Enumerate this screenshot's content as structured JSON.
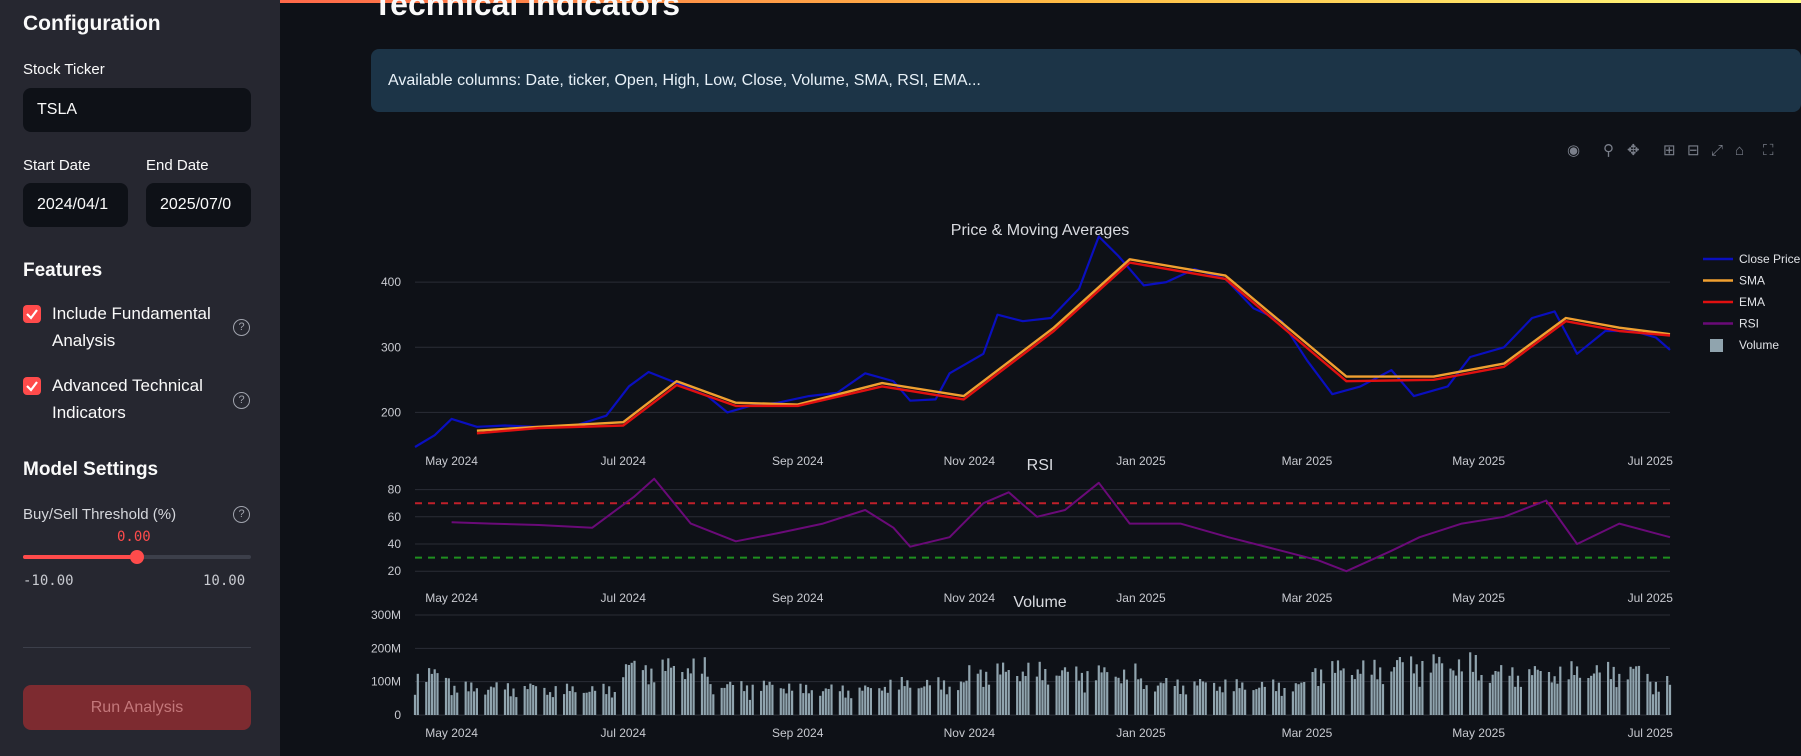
{
  "sidebar": {
    "config_title": "Configuration",
    "ticker_label": "Stock Ticker",
    "ticker_value": "TSLA",
    "start_label": "Start Date",
    "start_value": "2024/04/1",
    "end_label": "End Date",
    "end_value": "2025/07/0",
    "features_title": "Features",
    "feature1": "Include Fundamental Analysis",
    "feature2": "Advanced Technical Indicators",
    "model_title": "Model Settings",
    "threshold_label": "Buy/Sell Threshold (%)",
    "threshold_value": "0.00",
    "threshold_min": "-10.00",
    "threshold_max": "10.00",
    "threshold_fraction": 0.5,
    "run_button": "Run Analysis"
  },
  "main": {
    "page_title": "Technical Indicators",
    "info_text": "Available columns: Date, ticker, Open, High, Low, Close, Volume, SMA, RSI, EMA..."
  },
  "modebar_icons": [
    "camera-icon",
    "zoom-icon",
    "pan-icon",
    "zoom-in-icon",
    "zoom-out-icon",
    "autoscale-icon",
    "home-icon",
    "fullscreen-icon"
  ],
  "colors": {
    "close": "#0a0fbf",
    "sma": "#f0a030",
    "ema": "#e01010",
    "rsi": "#6a0a78",
    "volume": "#90a4ae",
    "overbought": "#c0202a",
    "oversold": "#1f8f1f"
  },
  "chart_data": [
    {
      "type": "line",
      "title": "Price & Moving Averages",
      "x_ticks": [
        "May 2024",
        "Jul 2024",
        "Sep 2024",
        "Nov 2024",
        "Jan 2025",
        "Mar 2025",
        "May 2025",
        "Jul 2025"
      ],
      "y_ticks": [
        200,
        300,
        400
      ],
      "ylim": [
        150,
        480
      ],
      "x_range": [
        "2024-04-18",
        "2025-07-08"
      ],
      "legend": [
        "Close Price",
        "SMA",
        "EMA",
        "RSI",
        "Volume"
      ],
      "legend_position": "right",
      "series": [
        {
          "name": "Close Price",
          "points": [
            [
              "2024-04-18",
              147
            ],
            [
              "2024-04-25",
              165
            ],
            [
              "2024-05-01",
              190
            ],
            [
              "2024-05-10",
              178
            ],
            [
              "2024-05-20",
              180
            ],
            [
              "2024-05-31",
              178
            ],
            [
              "2024-06-14",
              180
            ],
            [
              "2024-06-25",
              195
            ],
            [
              "2024-07-03",
              240
            ],
            [
              "2024-07-10",
              262
            ],
            [
              "2024-07-20",
              245
            ],
            [
              "2024-07-31",
              225
            ],
            [
              "2024-08-07",
              200
            ],
            [
              "2024-08-15",
              210
            ],
            [
              "2024-08-25",
              215
            ],
            [
              "2024-09-05",
              225
            ],
            [
              "2024-09-15",
              230
            ],
            [
              "2024-09-25",
              260
            ],
            [
              "2024-10-05",
              248
            ],
            [
              "2024-10-11",
              218
            ],
            [
              "2024-10-20",
              220
            ],
            [
              "2024-10-25",
              260
            ],
            [
              "2024-11-06",
              290
            ],
            [
              "2024-11-11",
              350
            ],
            [
              "2024-11-20",
              340
            ],
            [
              "2024-11-30",
              345
            ],
            [
              "2024-12-10",
              390
            ],
            [
              "2024-12-17",
              470
            ],
            [
              "2024-12-24",
              440
            ],
            [
              "2025-01-02",
              395
            ],
            [
              "2025-01-10",
              400
            ],
            [
              "2025-01-20",
              420
            ],
            [
              "2025-01-31",
              405
            ],
            [
              "2025-02-10",
              360
            ],
            [
              "2025-02-20",
              340
            ],
            [
              "2025-03-01",
              280
            ],
            [
              "2025-03-10",
              228
            ],
            [
              "2025-03-20",
              240
            ],
            [
              "2025-03-31",
              265
            ],
            [
              "2025-04-08",
              225
            ],
            [
              "2025-04-20",
              240
            ],
            [
              "2025-04-28",
              285
            ],
            [
              "2025-05-10",
              300
            ],
            [
              "2025-05-20",
              345
            ],
            [
              "2025-05-28",
              355
            ],
            [
              "2025-06-05",
              290
            ],
            [
              "2025-06-15",
              325
            ],
            [
              "2025-06-25",
              325
            ],
            [
              "2025-07-03",
              315
            ],
            [
              "2025-07-08",
              296
            ]
          ]
        },
        {
          "name": "SMA",
          "points": [
            [
              "2024-05-10",
              172
            ],
            [
              "2024-06-01",
              178
            ],
            [
              "2024-07-01",
              185
            ],
            [
              "2024-07-20",
              248
            ],
            [
              "2024-08-10",
              215
            ],
            [
              "2024-09-01",
              212
            ],
            [
              "2024-10-01",
              245
            ],
            [
              "2024-10-30",
              225
            ],
            [
              "2024-12-01",
              330
            ],
            [
              "2024-12-28",
              435
            ],
            [
              "2025-01-31",
              410
            ],
            [
              "2025-03-15",
              255
            ],
            [
              "2025-04-15",
              255
            ],
            [
              "2025-05-10",
              275
            ],
            [
              "2025-06-01",
              345
            ],
            [
              "2025-06-20",
              330
            ],
            [
              "2025-07-08",
              320
            ]
          ]
        },
        {
          "name": "EMA",
          "points": [
            [
              "2024-05-10",
              168
            ],
            [
              "2024-06-01",
              176
            ],
            [
              "2024-07-01",
              180
            ],
            [
              "2024-07-20",
              242
            ],
            [
              "2024-08-10",
              210
            ],
            [
              "2024-09-01",
              210
            ],
            [
              "2024-10-01",
              240
            ],
            [
              "2024-10-30",
              220
            ],
            [
              "2024-12-01",
              325
            ],
            [
              "2024-12-28",
              430
            ],
            [
              "2025-01-31",
              405
            ],
            [
              "2025-03-15",
              248
            ],
            [
              "2025-04-15",
              250
            ],
            [
              "2025-05-10",
              270
            ],
            [
              "2025-06-01",
              340
            ],
            [
              "2025-06-20",
              325
            ],
            [
              "2025-07-08",
              318
            ]
          ]
        }
      ]
    },
    {
      "type": "line",
      "title": "RSI",
      "x_ticks": [
        "May 2024",
        "Jul 2024",
        "Sep 2024",
        "Nov 2024",
        "Jan 2025",
        "Mar 2025",
        "May 2025",
        "Jul 2025"
      ],
      "y_ticks": [
        20,
        40,
        60,
        80
      ],
      "ylim": [
        15,
        90
      ],
      "thresholds": [
        70,
        30
      ],
      "series": [
        {
          "name": "RSI",
          "points": [
            [
              "2024-05-01",
              56
            ],
            [
              "2024-05-15",
              55
            ],
            [
              "2024-06-01",
              54
            ],
            [
              "2024-06-20",
              52
            ],
            [
              "2024-07-05",
              75
            ],
            [
              "2024-07-12",
              88
            ],
            [
              "2024-07-25",
              55
            ],
            [
              "2024-08-10",
              42
            ],
            [
              "2024-08-25",
              48
            ],
            [
              "2024-09-10",
              55
            ],
            [
              "2024-09-25",
              65
            ],
            [
              "2024-10-05",
              52
            ],
            [
              "2024-10-11",
              38
            ],
            [
              "2024-10-25",
              45
            ],
            [
              "2024-11-06",
              70
            ],
            [
              "2024-11-15",
              78
            ],
            [
              "2024-11-25",
              60
            ],
            [
              "2024-12-05",
              65
            ],
            [
              "2024-12-17",
              85
            ],
            [
              "2024-12-28",
              55
            ],
            [
              "2025-01-15",
              55
            ],
            [
              "2025-02-01",
              45
            ],
            [
              "2025-02-20",
              35
            ],
            [
              "2025-03-05",
              28
            ],
            [
              "2025-03-15",
              20
            ],
            [
              "2025-03-31",
              35
            ],
            [
              "2025-04-10",
              45
            ],
            [
              "2025-04-25",
              55
            ],
            [
              "2025-05-10",
              60
            ],
            [
              "2025-05-25",
              72
            ],
            [
              "2025-06-05",
              40
            ],
            [
              "2025-06-20",
              55
            ],
            [
              "2025-07-08",
              45
            ]
          ]
        }
      ]
    },
    {
      "type": "bar",
      "title": "Volume",
      "x_ticks": [
        "May 2024",
        "Jul 2024",
        "Sep 2024",
        "Nov 2024",
        "Jan 2025",
        "Mar 2025",
        "May 2025",
        "Jul 2025"
      ],
      "y_ticks": [
        "0",
        "100M",
        "200M",
        "300M"
      ],
      "ylim": [
        0,
        300
      ],
      "unit": "millions",
      "monthly_avg": [
        [
          "2024-04",
          110
        ],
        [
          "2024-05",
          75
        ],
        [
          "2024-06",
          70
        ],
        [
          "2024-07",
          130
        ],
        [
          "2024-08",
          80
        ],
        [
          "2024-09",
          70
        ],
        [
          "2024-10",
          85
        ],
        [
          "2024-11",
          120
        ],
        [
          "2024-12",
          115
        ],
        [
          "2025-01",
          85
        ],
        [
          "2025-02",
          80
        ],
        [
          "2025-03",
          125
        ],
        [
          "2025-04",
          140
        ],
        [
          "2025-05",
          115
        ],
        [
          "2025-06",
          120
        ],
        [
          "2025-07",
          90
        ]
      ]
    }
  ]
}
